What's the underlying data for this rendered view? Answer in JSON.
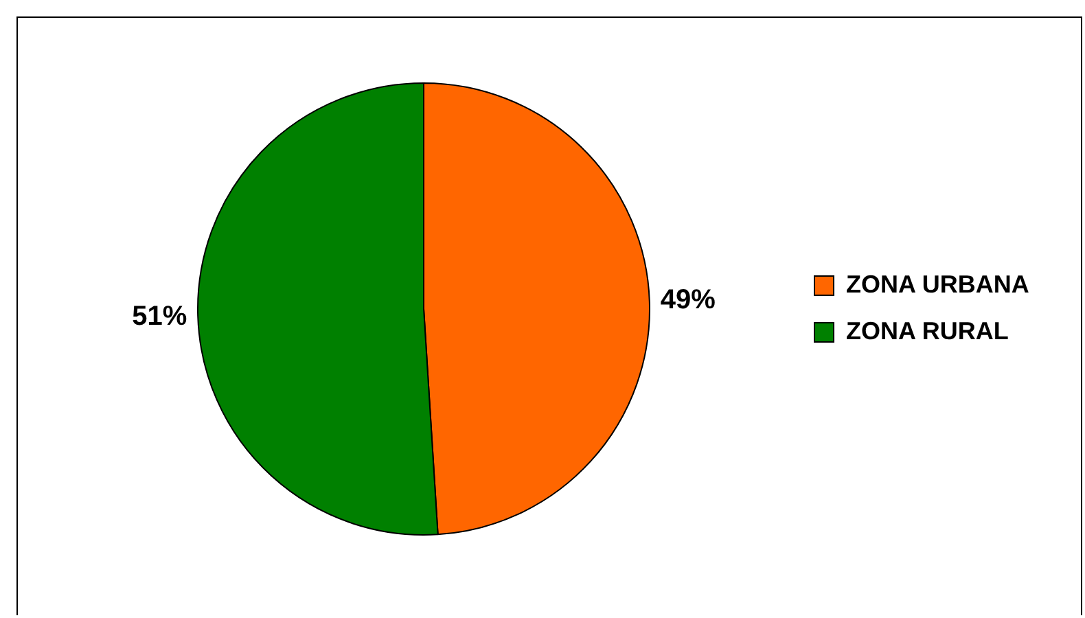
{
  "chart_data": {
    "type": "pie",
    "categories": [
      "ZONA URBANA",
      "ZONA RURAL"
    ],
    "values": [
      49,
      51
    ],
    "colors": [
      "#ff6600",
      "#008000"
    ],
    "value_labels": [
      "49%",
      "51%"
    ],
    "legend": "right"
  }
}
